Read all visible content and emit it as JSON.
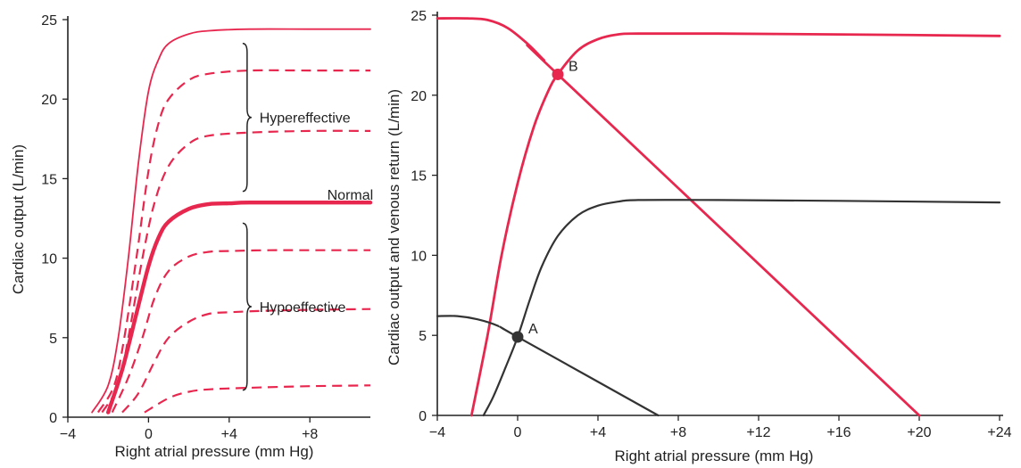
{
  "colors": {
    "red": "#e8274f",
    "dark": "#333333",
    "axis": "#222222"
  },
  "chart_data": [
    {
      "type": "line",
      "xlabel": "Right atrial pressure (mm Hg)",
      "ylabel": "Cardiac output (L/min)",
      "xlim": [
        -4,
        11
      ],
      "ylim": [
        0,
        25
      ],
      "x_ticks": [
        {
          "value": -4,
          "label": "−4"
        },
        {
          "value": 0,
          "label": "0"
        },
        {
          "value": 4,
          "label": "+4"
        },
        {
          "value": 8,
          "label": "+8"
        }
      ],
      "y_ticks": [
        {
          "value": 0,
          "label": "0"
        },
        {
          "value": 5,
          "label": "5"
        },
        {
          "value": 10,
          "label": "10"
        },
        {
          "value": 15,
          "label": "15"
        },
        {
          "value": 20,
          "label": "20"
        },
        {
          "value": 25,
          "label": "25"
        }
      ],
      "series": [
        {
          "style": "solid-thin",
          "x": [
            -2.8,
            -2.0,
            -1.5,
            -1.0,
            -0.5,
            0.0,
            0.5,
            1.0,
            2.0,
            3.0,
            5.0,
            8.0,
            11.0
          ],
          "y": [
            0.3,
            2.0,
            5.0,
            10.0,
            16.0,
            20.5,
            22.5,
            23.5,
            24.1,
            24.3,
            24.4,
            24.4,
            24.4
          ]
        },
        {
          "style": "dashed",
          "x": [
            -2.5,
            -1.7,
            -1.2,
            -0.6,
            0.0,
            0.5,
            1.0,
            2.0,
            3.0,
            5.0,
            8.0,
            11.0
          ],
          "y": [
            0.3,
            2.0,
            5.0,
            10.0,
            15.5,
            18.5,
            20.0,
            21.2,
            21.6,
            21.8,
            21.8,
            21.8
          ]
        },
        {
          "style": "dashed",
          "x": [
            -2.3,
            -1.5,
            -1.0,
            -0.3,
            0.3,
            1.0,
            2.0,
            3.0,
            5.0,
            8.0,
            11.0
          ],
          "y": [
            0.3,
            2.0,
            5.0,
            10.0,
            13.5,
            15.8,
            17.2,
            17.7,
            17.9,
            18.0,
            18.0
          ]
        },
        {
          "style": "bold",
          "name": "Normal",
          "x": [
            -2.0,
            -1.3,
            -0.6,
            0.0,
            0.5,
            1.0,
            2.0,
            3.0,
            4.0,
            5.0,
            8.0,
            11.0
          ],
          "y": [
            0.3,
            3.0,
            6.5,
            9.5,
            11.3,
            12.3,
            13.1,
            13.4,
            13.45,
            13.5,
            13.5,
            13.5
          ]
        },
        {
          "style": "dashed",
          "x": [
            -1.8,
            -1.0,
            -0.3,
            0.3,
            1.0,
            2.0,
            3.0,
            4.0,
            6.0,
            8.0,
            11.0
          ],
          "y": [
            0.3,
            2.5,
            5.0,
            7.5,
            9.2,
            10.1,
            10.4,
            10.45,
            10.5,
            10.5,
            10.5
          ]
        },
        {
          "style": "dashed",
          "x": [
            -1.3,
            -0.5,
            0.3,
            1.0,
            2.0,
            3.0,
            4.0,
            6.0,
            8.0,
            11.0
          ],
          "y": [
            0.3,
            1.5,
            3.5,
            5.0,
            6.0,
            6.5,
            6.6,
            6.7,
            6.75,
            6.8
          ]
        },
        {
          "style": "dashed",
          "x": [
            -0.2,
            1.0,
            2.0,
            3.0,
            5.0,
            8.0,
            11.0
          ],
          "y": [
            0.3,
            1.2,
            1.6,
            1.75,
            1.85,
            1.95,
            2.0
          ]
        }
      ],
      "brackets": [
        {
          "label": "Hypereffective",
          "x": 4.8,
          "y_bottom": 14.2,
          "y_top": 23.5,
          "label_x": 5.5
        },
        {
          "label": "Hypoeffective",
          "x": 4.8,
          "y_bottom": 1.7,
          "y_top": 12.2,
          "label_x": 5.5
        }
      ],
      "annotations": [
        {
          "text": "Normal",
          "x": 10.0,
          "y": 14.0
        }
      ]
    },
    {
      "type": "line",
      "xlabel": "Right atrial pressure (mm Hg)",
      "ylabel": "Cardiac output and venous return (L/min)",
      "xlim": [
        -4,
        24
      ],
      "ylim": [
        0,
        25
      ],
      "x_ticks": [
        {
          "value": -4,
          "label": "−4"
        },
        {
          "value": 0,
          "label": "0"
        },
        {
          "value": 4,
          "label": "+4"
        },
        {
          "value": 8,
          "label": "+8"
        },
        {
          "value": 12,
          "label": "+12"
        },
        {
          "value": 16,
          "label": "+16"
        },
        {
          "value": 20,
          "label": "+20"
        },
        {
          "value": 24,
          "label": "+24"
        }
      ],
      "y_ticks": [
        {
          "value": 0,
          "label": "0"
        },
        {
          "value": 5,
          "label": "5"
        },
        {
          "value": 10,
          "label": "10"
        },
        {
          "value": 15,
          "label": "15"
        },
        {
          "value": 20,
          "label": "20"
        },
        {
          "value": 25,
          "label": "25"
        }
      ],
      "series": [
        {
          "color": "red",
          "x": [
            -2.3,
            -1.5,
            -0.8,
            0.0,
            0.8,
            1.5,
            2.0,
            3.0,
            4.0,
            5.0,
            6.0,
            10.0,
            16.0,
            24.0
          ],
          "y": [
            0.0,
            5.0,
            10.0,
            14.5,
            18.0,
            20.2,
            21.3,
            22.8,
            23.5,
            23.8,
            23.85,
            23.85,
            23.8,
            23.7
          ]
        },
        {
          "color": "red",
          "x": [
            -4.0,
            -2.5,
            -1.5,
            -0.5,
            0.5,
            1.3,
            2.0,
            20.0
          ],
          "y": [
            24.8,
            24.8,
            24.7,
            24.2,
            23.2,
            22.2,
            21.3,
            0.0
          ]
        },
        {
          "color": "dark",
          "x": [
            -1.7,
            -1.2,
            -0.6,
            0.0,
            0.6,
            1.2,
            2.0,
            3.0,
            4.0,
            5.0,
            6.0,
            10.0,
            16.0,
            24.0
          ],
          "y": [
            0.0,
            1.2,
            3.0,
            4.9,
            7.2,
            9.3,
            11.2,
            12.5,
            13.1,
            13.35,
            13.45,
            13.45,
            13.4,
            13.3
          ]
        },
        {
          "color": "dark",
          "x": [
            -4.0,
            -3.0,
            -2.0,
            -1.0,
            0.0,
            7.0
          ],
          "y": [
            6.2,
            6.2,
            6.0,
            5.6,
            4.9,
            0.0
          ]
        }
      ],
      "points": [
        {
          "label": "A",
          "x": 0.0,
          "y": 4.9,
          "color": "dark"
        },
        {
          "label": "B",
          "x": 2.0,
          "y": 21.3,
          "color": "red"
        }
      ]
    }
  ]
}
